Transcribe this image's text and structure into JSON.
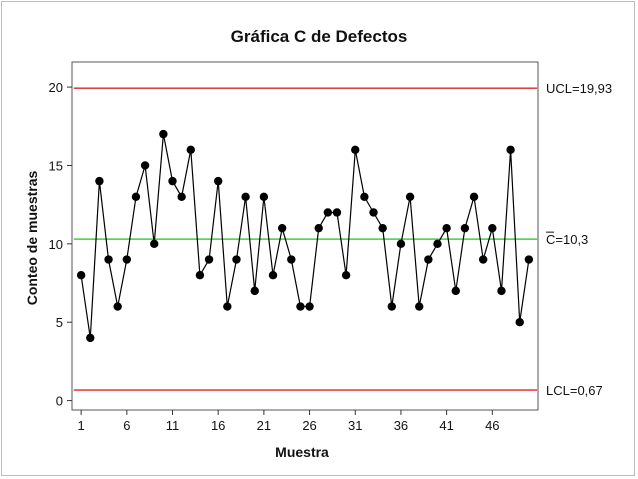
{
  "chart_data": {
    "type": "line",
    "title": "Gráfica C de Defectos",
    "xlabel": "Muestra",
    "ylabel": "Conteo de muestras",
    "x_ticks": [
      1,
      6,
      11,
      16,
      21,
      26,
      31,
      36,
      41,
      46
    ],
    "y_ticks": [
      0,
      5,
      10,
      15,
      20
    ],
    "xlim": [
      0,
      51
    ],
    "ylim": [
      -0.6,
      21.6
    ],
    "grid": false,
    "series": [
      {
        "x": [
          1,
          2,
          3,
          4,
          5,
          6,
          7,
          8,
          9,
          10,
          11,
          12,
          13,
          14,
          15,
          16,
          17,
          18,
          19,
          20,
          21,
          22,
          23,
          24,
          25,
          26,
          27,
          28,
          29,
          30,
          31,
          32,
          33,
          34,
          35,
          36,
          37,
          38,
          39,
          40,
          41,
          42,
          43,
          44,
          45,
          46,
          47,
          48,
          49,
          50
        ],
        "values": [
          8,
          4,
          14,
          9,
          6,
          9,
          13,
          15,
          10,
          17,
          14,
          13,
          16,
          8,
          9,
          14,
          6,
          9,
          13,
          7,
          13,
          8,
          11,
          9,
          6,
          6,
          11,
          12,
          12,
          8,
          16,
          13,
          12,
          11,
          6,
          10,
          13,
          6,
          9,
          10,
          11,
          7,
          11,
          13,
          9,
          11,
          7,
          16,
          5,
          9
        ]
      }
    ],
    "reference_lines": [
      {
        "value": 19.93,
        "label": "UCL=19,93",
        "color": "#d62728"
      },
      {
        "value": 10.3,
        "label": "C=10,3",
        "color": "#44cc44"
      },
      {
        "value": 0.67,
        "label": "LCL=0,67",
        "color": "#d62728"
      }
    ],
    "series_color": "#000000"
  }
}
